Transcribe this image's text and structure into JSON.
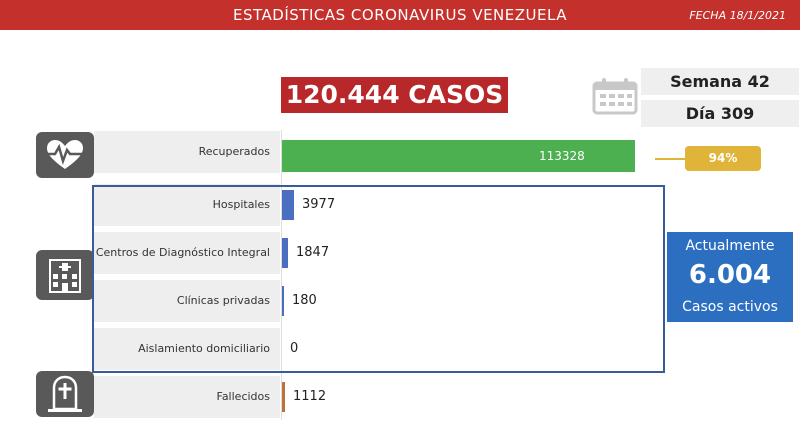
{
  "header": {
    "title": "ESTADÍSTICAS CORONAVIRUS VENEZUELA",
    "date": "FECHA 18/1/2021"
  },
  "total_cases": "120.444 CASOS",
  "week_label": "Semana 42",
  "day_label": "Día 309",
  "recovered_percent": "94%",
  "active": {
    "line1": "Actualmente",
    "value": "6.004",
    "line2": "Casos activos"
  },
  "icons": [
    "calendar-icon",
    "heartbeat-icon",
    "hospital-icon",
    "tombstone-icon"
  ],
  "colors": {
    "header": "#c4302b",
    "cases_box": "#b8282a",
    "recovered": "#4caf50",
    "care": "#4a6fc1",
    "deceased": "#c0703a",
    "percent": "#e0b339",
    "active": "#2c6fc0"
  },
  "chart_data": {
    "type": "bar",
    "orientation": "horizontal",
    "title": "",
    "xlabel": "",
    "ylabel": "",
    "categories": [
      "Recuperados",
      "Hospitales",
      "Centros de Diagnóstico Integral",
      "Clínicas privadas",
      "Aislamiento domiciliario",
      "Fallecidos"
    ],
    "values": [
      113328,
      3977,
      1847,
      180,
      0,
      1112
    ],
    "xlim": [
      0,
      120000
    ],
    "grid": false,
    "legend": "none"
  }
}
